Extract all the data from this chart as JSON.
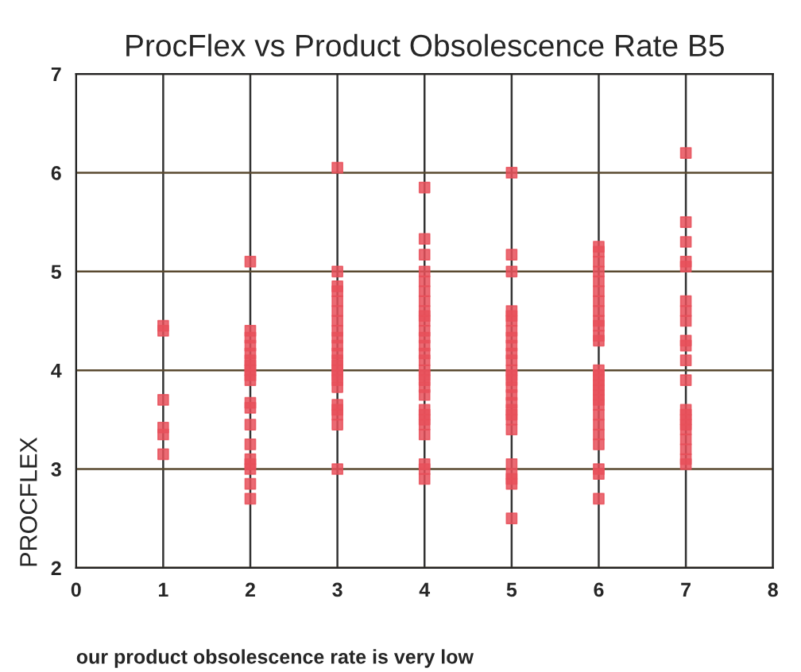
{
  "chart_data": {
    "type": "scatter",
    "title": "ProcFlex vs Product Obsolescence Rate B5",
    "xlabel": "our product obsolescence rate is very low",
    "ylabel": "PROCFLEX",
    "series": [
      {
        "color": "#e8505b",
        "x": [
          1,
          1,
          1,
          1,
          1,
          1,
          2,
          2,
          2,
          2,
          2,
          2,
          2,
          2,
          2,
          2,
          2,
          2,
          2,
          2,
          2,
          2,
          2,
          2,
          2,
          3,
          3,
          3,
          3,
          3,
          3,
          3,
          3,
          3,
          3,
          3,
          3,
          3,
          3,
          3,
          3,
          3,
          3,
          3,
          3,
          3,
          3,
          4,
          4,
          4,
          4,
          4,
          4,
          4,
          4,
          4,
          4,
          4,
          4,
          4,
          4,
          4,
          4,
          4,
          4,
          4,
          4,
          4,
          4,
          4,
          4,
          4,
          4,
          4,
          4,
          5,
          5,
          5,
          5,
          5,
          5,
          5,
          5,
          5,
          5,
          5,
          5,
          5,
          5,
          5,
          5,
          5,
          5,
          5,
          5,
          5,
          5,
          5,
          5,
          5,
          5,
          6,
          6,
          6,
          6,
          6,
          6,
          6,
          6,
          6,
          6,
          6,
          6,
          6,
          6,
          6,
          6,
          6,
          6,
          6,
          6,
          6,
          6,
          6,
          6,
          6,
          6,
          6,
          7,
          7,
          7,
          7,
          7,
          7,
          7,
          7,
          7,
          7,
          7,
          7,
          7,
          7,
          7,
          7,
          7,
          7,
          7,
          7,
          7
        ],
        "values": [
          4.45,
          4.4,
          3.7,
          3.42,
          3.35,
          3.15,
          5.1,
          4.4,
          4.33,
          4.25,
          4.17,
          4.1,
          4.05,
          4.0,
          3.95,
          3.9,
          3.67,
          3.62,
          3.45,
          3.25,
          3.1,
          3.05,
          3.0,
          2.85,
          2.7,
          6.05,
          5.0,
          4.85,
          4.8,
          4.7,
          4.6,
          4.5,
          4.4,
          4.33,
          4.25,
          4.17,
          4.1,
          4.05,
          4.0,
          3.95,
          3.9,
          3.83,
          3.65,
          3.6,
          3.55,
          3.45,
          3.0,
          5.85,
          5.33,
          5.17,
          5.0,
          4.9,
          4.8,
          4.7,
          4.6,
          4.55,
          4.5,
          4.4,
          4.33,
          4.25,
          4.17,
          4.1,
          4.0,
          3.95,
          3.9,
          3.83,
          3.75,
          3.6,
          3.55,
          3.5,
          3.45,
          3.35,
          3.05,
          3.0,
          2.9,
          6.0,
          5.17,
          5.0,
          4.6,
          4.55,
          4.5,
          4.4,
          4.33,
          4.25,
          4.17,
          4.1,
          4.0,
          3.95,
          3.9,
          3.83,
          3.75,
          3.67,
          3.6,
          3.55,
          3.5,
          3.4,
          3.05,
          2.95,
          2.9,
          2.85,
          2.5,
          5.25,
          5.2,
          5.1,
          5.0,
          4.9,
          4.8,
          4.7,
          4.6,
          4.5,
          4.45,
          4.35,
          4.3,
          4.0,
          3.95,
          3.9,
          3.85,
          3.8,
          3.75,
          3.7,
          3.65,
          3.55,
          3.45,
          3.35,
          3.25,
          3.0,
          2.95,
          2.7,
          6.2,
          5.5,
          5.3,
          5.1,
          5.05,
          4.7,
          4.6,
          4.5,
          4.3,
          4.25,
          4.1,
          3.9,
          3.6,
          3.55,
          3.5,
          3.45,
          3.4,
          3.3,
          3.2,
          3.1,
          3.05
        ]
      }
    ],
    "xlim": [
      0,
      8
    ],
    "xticks": [
      0,
      1,
      2,
      3,
      4,
      5,
      6,
      7,
      8
    ],
    "ylim": [
      2,
      7
    ],
    "yticks": [
      2,
      3,
      4,
      5,
      6,
      7
    ],
    "grid": true,
    "marker": "square"
  }
}
